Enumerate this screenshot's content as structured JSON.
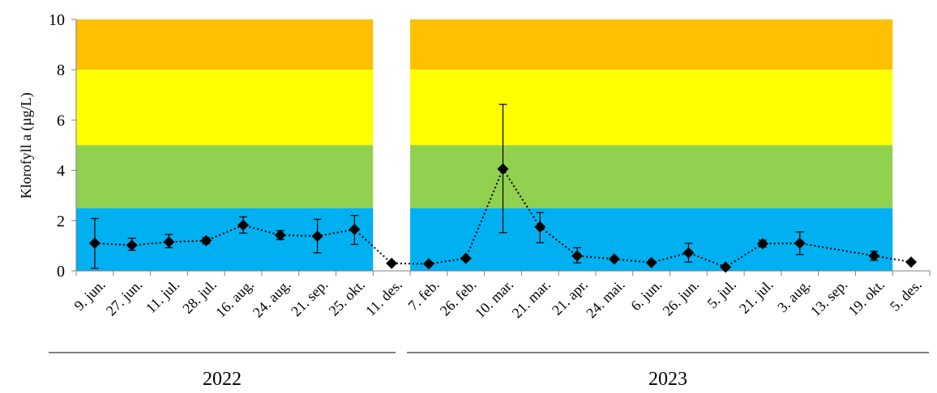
{
  "chart_data": {
    "type": "line",
    "ylabel": "Klorofyll a (µg/L)",
    "ylim": [
      0,
      10
    ],
    "yticks": [
      "0",
      "2",
      "4",
      "6",
      "8",
      "10"
    ],
    "categories": [
      "9. jun.",
      "27. jun.",
      "11. jul.",
      "28. jul.",
      "16. aug.",
      "24. aug.",
      "21. sep.",
      "25. okt.",
      "11. des.",
      "7. feb.",
      "26. feb.",
      "10. mar.",
      "21. mar.",
      "21. apr.",
      "24. mai.",
      "6. jun.",
      "26. jun.",
      "5. jul.",
      "21. jul.",
      "3. aug.",
      "13. sep.",
      "19. okt.",
      "5. des."
    ],
    "series": [
      {
        "values": [
          1.1,
          1.02,
          1.15,
          1.2,
          1.82,
          1.42,
          1.38,
          1.65,
          0.3,
          0.28,
          0.5,
          4.05,
          1.75,
          0.6,
          0.47,
          0.33,
          0.72,
          0.15,
          1.08,
          1.1,
          null,
          0.6,
          0.35
        ],
        "error_low": [
          0.1,
          0.82,
          0.92,
          1.08,
          1.5,
          1.25,
          0.72,
          1.05,
          null,
          null,
          null,
          1.52,
          1.12,
          0.32,
          null,
          null,
          0.35,
          null,
          0.95,
          0.65,
          null,
          0.42,
          null
        ],
        "error_high": [
          2.08,
          1.3,
          1.45,
          1.32,
          2.15,
          1.6,
          2.05,
          2.2,
          null,
          null,
          null,
          6.62,
          2.32,
          0.92,
          null,
          null,
          1.1,
          null,
          1.22,
          1.55,
          null,
          0.78,
          null
        ],
        "color": "#000000"
      }
    ],
    "zones": [
      {
        "from": 0,
        "to": 2.5,
        "color": "#00b0f0"
      },
      {
        "from": 2.5,
        "to": 5,
        "color": "#92d050"
      },
      {
        "from": 5,
        "to": 8,
        "color": "#ffff00"
      },
      {
        "from": 8,
        "to": 10,
        "color": "#ffc000"
      }
    ],
    "groups": [
      {
        "label": "2022",
        "first": 0,
        "last": 7
      },
      {
        "label": "2023",
        "first": 9,
        "last": 21
      }
    ],
    "grid": false,
    "legend": "none"
  }
}
